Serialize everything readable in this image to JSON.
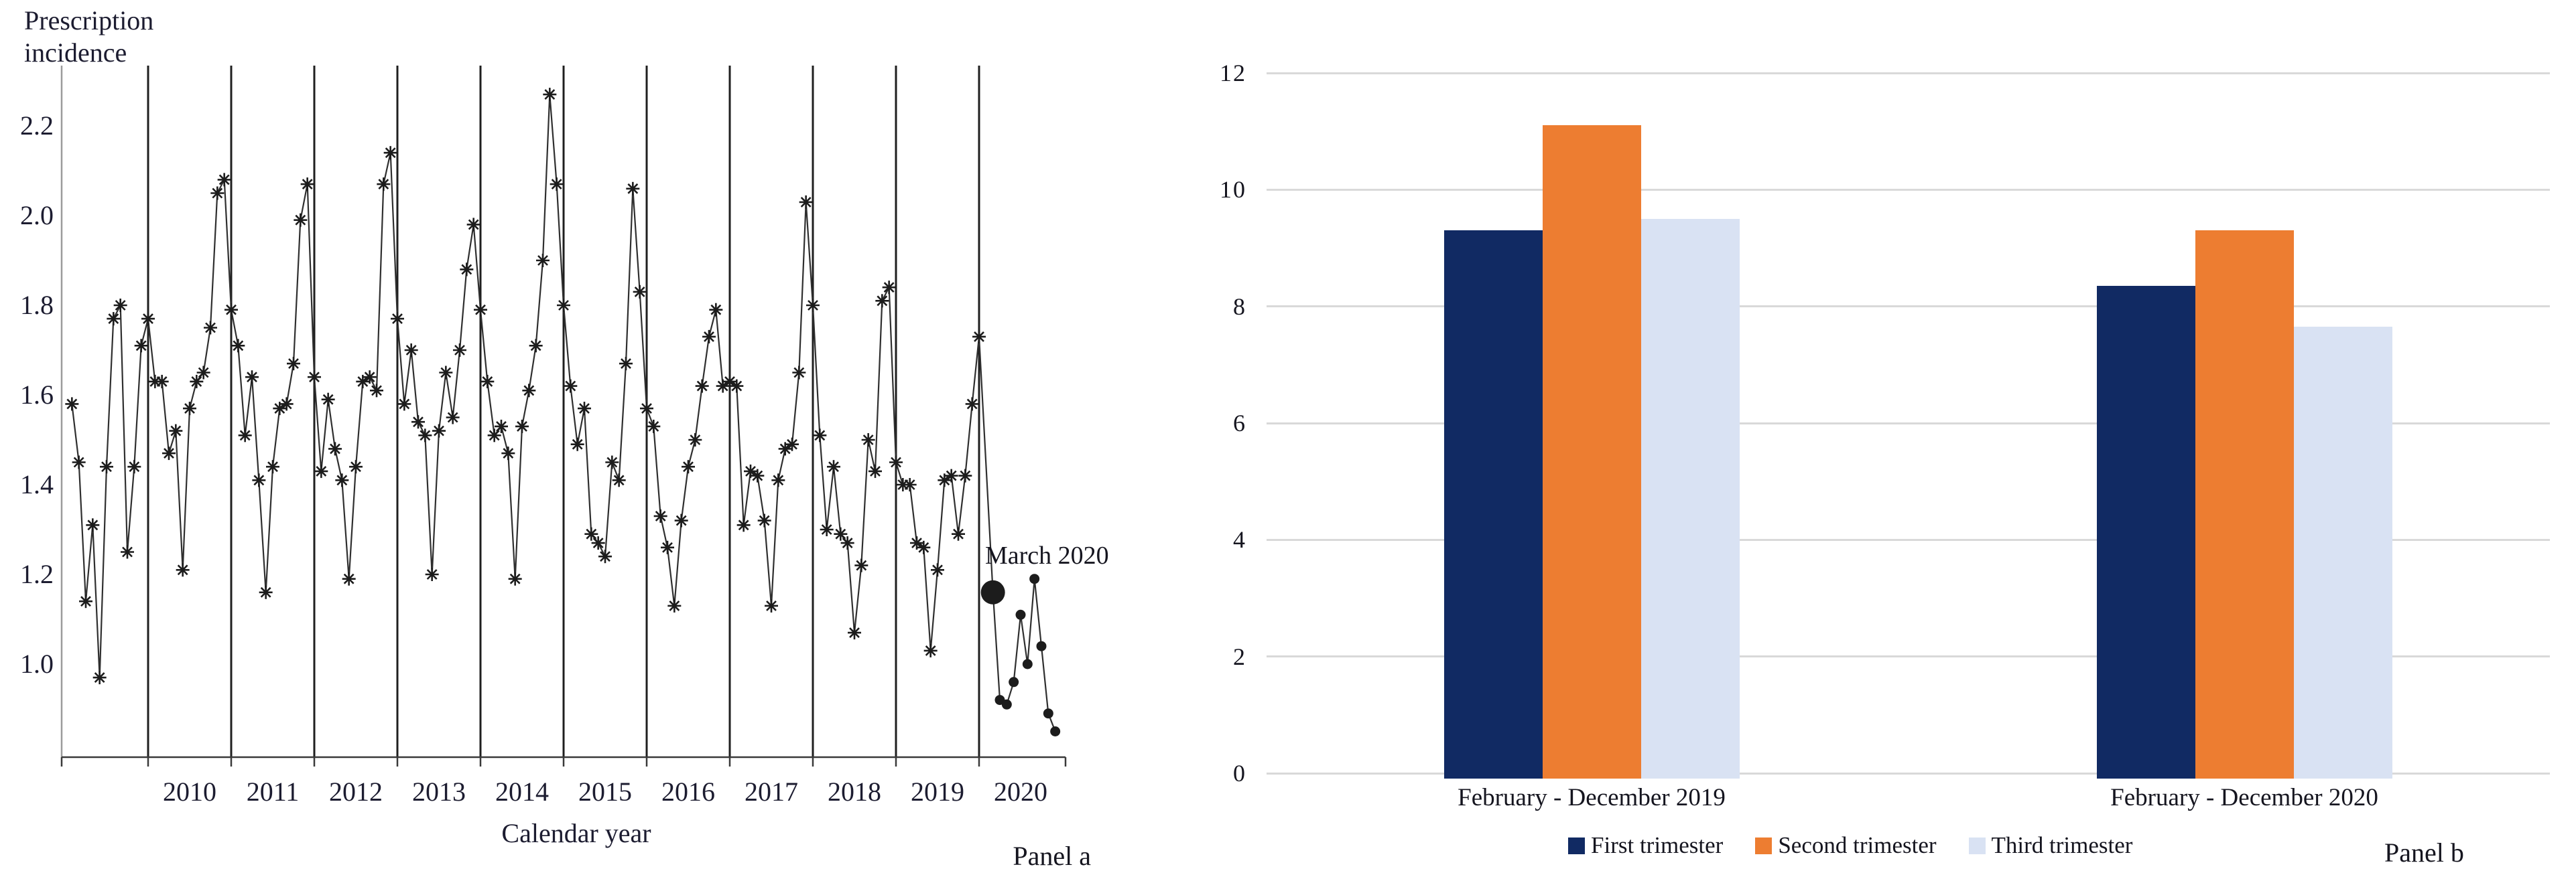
{
  "figure": {
    "background": "#ffffff"
  },
  "panel_a": {
    "title_line1": "Prescription",
    "title_line2": "incidence",
    "xlabel": "Calendar year",
    "panel_label": "Panel a",
    "annotation": "March 2020",
    "y_tick_labels": [
      "2.2",
      "2.0",
      "1.8",
      "1.6",
      "1.4",
      "1.2",
      "1.0"
    ],
    "x_tick_labels": [
      "2010",
      "2011",
      "2012",
      "2013",
      "2014",
      "2015",
      "2016",
      "2017",
      "2018",
      "2019",
      "2020"
    ]
  },
  "panel_b": {
    "panel_label": "Panel b",
    "y_tick_labels": [
      "0",
      "2",
      "4",
      "6",
      "8",
      "10",
      "12"
    ],
    "categories": [
      "February - December 2019",
      "February - December 2020"
    ],
    "legend": [
      "First trimester",
      "Second trimester",
      "Third trimester"
    ]
  },
  "colors": {
    "first_trimester": "#112a63",
    "second_trimester": "#ed7d31",
    "third_trimester": "#d9e2f3",
    "gridline": "#d9d9d9",
    "line_and_markers": "#1c1c1c",
    "year_gridline": "#1f1f1f",
    "y_axis": "#9b9b9b",
    "x_axis": "#3a3a3a",
    "text": "#15151f"
  },
  "chart_data": [
    {
      "type": "line",
      "title": "Prescription incidence",
      "xlabel": "Calendar year",
      "panel": "Panel a",
      "x_range": "monthly, February 2009 - December 2020",
      "ylim": [
        0.83,
        2.34
      ],
      "y_ticks": [
        2.2,
        2.0,
        1.8,
        1.6,
        1.4,
        1.2,
        1.0
      ],
      "x_tick_labels": [
        "2010",
        "2011",
        "2012",
        "2013",
        "2014",
        "2015",
        "2016",
        "2017",
        "2018",
        "2019",
        "2020"
      ],
      "grid": "vertical black line at each January",
      "series": [
        {
          "name": "Monthly prescription incidence (asterisk markers)",
          "marker": "asterisk",
          "start_month": "2009-02",
          "values": [
            1.58,
            1.45,
            1.14,
            1.31,
            0.97,
            1.44,
            1.77,
            1.8,
            1.25,
            1.44,
            1.71,
            1.77,
            1.63,
            1.63,
            1.47,
            1.52,
            1.21,
            1.57,
            1.63,
            1.65,
            1.75,
            2.05,
            2.08,
            1.79,
            1.71,
            1.51,
            1.64,
            1.41,
            1.16,
            1.44,
            1.57,
            1.58,
            1.67,
            1.99,
            2.07,
            1.64,
            1.43,
            1.59,
            1.48,
            1.41,
            1.19,
            1.44,
            1.63,
            1.64,
            1.61,
            2.07,
            2.14,
            1.77,
            1.58,
            1.7,
            1.54,
            1.51,
            1.2,
            1.52,
            1.65,
            1.55,
            1.7,
            1.88,
            1.98,
            1.79,
            1.63,
            1.51,
            1.53,
            1.47,
            1.19,
            1.53,
            1.61,
            1.71,
            1.9,
            2.27,
            2.07,
            1.8,
            1.62,
            1.49,
            1.57,
            1.29,
            1.27,
            1.24,
            1.45,
            1.41,
            1.67,
            2.06,
            1.83,
            1.57,
            1.53,
            1.33,
            1.26,
            1.13,
            1.32,
            1.44,
            1.5,
            1.62,
            1.73,
            1.79,
            1.62,
            1.63,
            1.62,
            1.31,
            1.43,
            1.42,
            1.32,
            1.13,
            1.41,
            1.48,
            1.49,
            1.65,
            2.03,
            1.8,
            1.51,
            1.3,
            1.44,
            1.29,
            1.27,
            1.07,
            1.22,
            1.5,
            1.43,
            1.81,
            1.84,
            1.45,
            1.4,
            1.4,
            1.27,
            1.26,
            1.03,
            1.21,
            1.41,
            1.42,
            1.29,
            1.42,
            1.58,
            1.73
          ]
        },
        {
          "name": "Monthly prescription incidence, pandemic months (filled dot markers)",
          "marker": "filled-circle",
          "start_month": "2020-03",
          "values": [
            1.16,
            0.92,
            0.91,
            0.96,
            1.11,
            1.0,
            1.19,
            1.04,
            0.89,
            0.85
          ]
        }
      ],
      "annotations": [
        {
          "text": "March 2020",
          "target_month": "2020-03",
          "target_value": 1.16,
          "style": "large filled dot"
        }
      ]
    },
    {
      "type": "bar",
      "categories": [
        "February - December 2019",
        "February - December 2020"
      ],
      "series": [
        {
          "name": "First trimester",
          "color": "#112a63",
          "values": [
            9.3,
            8.35
          ]
        },
        {
          "name": "Second trimester",
          "color": "#ed7d31",
          "values": [
            11.1,
            9.3
          ]
        },
        {
          "name": "Third trimester",
          "color": "#d9e2f3",
          "values": [
            9.5,
            7.65
          ]
        }
      ],
      "ylim": [
        0,
        12
      ],
      "y_ticks": [
        0,
        2,
        4,
        6,
        8,
        10,
        12
      ],
      "grid": "horizontal light gray",
      "legend_position": "bottom",
      "panel": "Panel b"
    }
  ]
}
